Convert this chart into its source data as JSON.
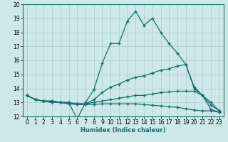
{
  "xlabel": "Humidex (Indice chaleur)",
  "background_color": "#cde8e8",
  "grid_color": "#aacccc",
  "line_color": "#1a6b6b",
  "xlim": [
    -0.5,
    23.5
  ],
  "ylim": [
    12,
    20
  ],
  "xticks": [
    0,
    1,
    2,
    3,
    4,
    5,
    6,
    7,
    8,
    9,
    10,
    11,
    12,
    13,
    14,
    15,
    16,
    17,
    18,
    19,
    20,
    21,
    22,
    23
  ],
  "yticks": [
    12,
    13,
    14,
    15,
    16,
    17,
    18,
    19,
    20
  ],
  "lines": [
    {
      "x": [
        0,
        1,
        2,
        3,
        4,
        5,
        6,
        7,
        8,
        9,
        10,
        11,
        12,
        13,
        14,
        15,
        16,
        17,
        18,
        19,
        20,
        21,
        22,
        23
      ],
      "y": [
        13.5,
        13.2,
        13.1,
        13.1,
        13.0,
        13.0,
        11.8,
        13.0,
        13.9,
        15.8,
        17.2,
        17.2,
        18.8,
        19.5,
        18.5,
        19.0,
        18.0,
        17.2,
        16.5,
        15.7,
        14.0,
        13.5,
        13.0,
        12.4
      ]
    },
    {
      "x": [
        0,
        1,
        2,
        3,
        4,
        5,
        6,
        7,
        8,
        9,
        10,
        11,
        12,
        13,
        14,
        15,
        16,
        17,
        18,
        19,
        20,
        21,
        22,
        23
      ],
      "y": [
        13.5,
        13.2,
        13.1,
        13.1,
        13.0,
        13.0,
        12.9,
        12.9,
        13.2,
        13.7,
        14.1,
        14.3,
        14.6,
        14.8,
        14.9,
        15.1,
        15.3,
        15.4,
        15.6,
        15.7,
        14.1,
        13.5,
        12.5,
        12.3
      ]
    },
    {
      "x": [
        0,
        1,
        2,
        3,
        4,
        5,
        6,
        7,
        8,
        9,
        10,
        11,
        12,
        13,
        14,
        15,
        16,
        17,
        18,
        19,
        20,
        21,
        22,
        23
      ],
      "y": [
        13.5,
        13.2,
        13.1,
        13.0,
        13.0,
        12.9,
        12.9,
        12.9,
        13.0,
        13.1,
        13.2,
        13.3,
        13.4,
        13.5,
        13.5,
        13.6,
        13.7,
        13.75,
        13.8,
        13.8,
        13.8,
        13.5,
        12.8,
        12.4
      ]
    },
    {
      "x": [
        0,
        1,
        2,
        3,
        4,
        5,
        6,
        7,
        8,
        9,
        10,
        11,
        12,
        13,
        14,
        15,
        16,
        17,
        18,
        19,
        20,
        21,
        22,
        23
      ],
      "y": [
        13.5,
        13.2,
        13.1,
        13.0,
        13.0,
        12.9,
        12.85,
        12.85,
        12.85,
        12.9,
        12.9,
        12.9,
        12.9,
        12.9,
        12.85,
        12.8,
        12.75,
        12.7,
        12.65,
        12.55,
        12.45,
        12.4,
        12.4,
        12.3
      ]
    }
  ]
}
